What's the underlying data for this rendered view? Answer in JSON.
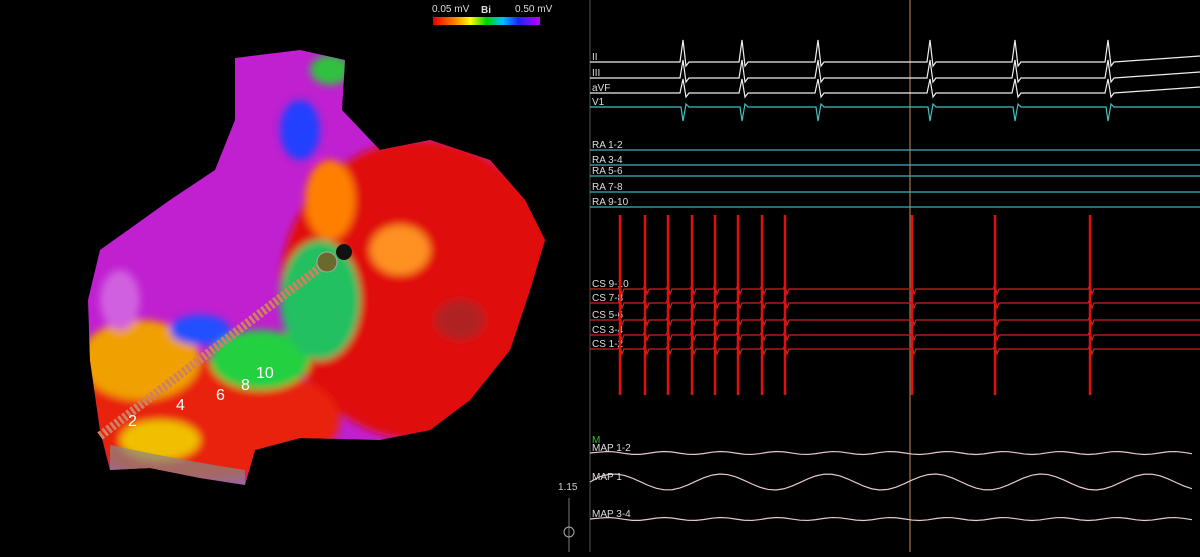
{
  "colorbar": {
    "min_label": "0.05 mV",
    "title": "Bi",
    "max_label": "0.50 mV"
  },
  "catheter_labels": [
    "2",
    "4",
    "6",
    "8",
    "10"
  ],
  "channels": [
    {
      "label": "II"
    },
    {
      "label": "III"
    },
    {
      "label": "aVF"
    },
    {
      "label": "V1"
    },
    {
      "label": "RA 1-2"
    },
    {
      "label": "RA 3-4"
    },
    {
      "label": "RA 5-6"
    },
    {
      "label": "RA 7-8"
    },
    {
      "label": "RA 9-10"
    },
    {
      "label": "CS 9-10"
    },
    {
      "label": "CS 7-8"
    },
    {
      "label": "CS 5-6"
    },
    {
      "label": "CS 3-4"
    },
    {
      "label": "CS 1-2"
    },
    {
      "label": "MAP 1-2"
    },
    {
      "label": "MAP 1"
    },
    {
      "label": "MAP 3-4"
    }
  ],
  "marker_label": "M",
  "gain_label": "1.15"
}
